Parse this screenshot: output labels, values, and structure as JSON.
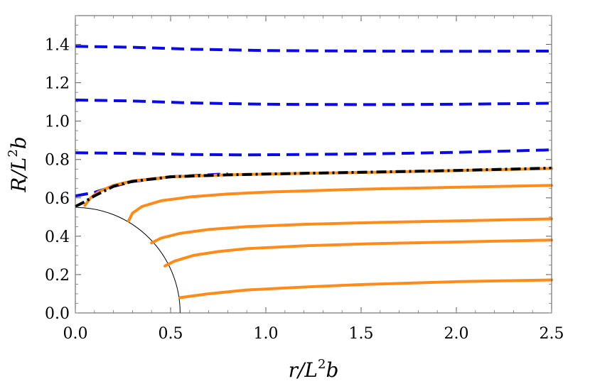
{
  "chart_data": {
    "type": "line",
    "xlabel": "r/L2b",
    "xlabel_parts": {
      "pre": "r/L",
      "sup": "2",
      "post": "b"
    },
    "ylabel": "R/L2b",
    "ylabel_parts": {
      "pre": "R/L",
      "sup": "2",
      "post": "b"
    },
    "xlim": [
      0,
      2.5
    ],
    "ylim": [
      0,
      1.55
    ],
    "x_ticks": [
      "0.0",
      "0.5",
      "1.0",
      "1.5",
      "2.0",
      "2.5"
    ],
    "x_tick_values": [
      0,
      0.5,
      1.0,
      1.5,
      2.0,
      2.5
    ],
    "y_ticks": [
      "0.0",
      "0.2",
      "0.4",
      "0.6",
      "0.8",
      "1.0",
      "1.2",
      "1.4"
    ],
    "y_tick_values": [
      0,
      0.2,
      0.4,
      0.6,
      0.8,
      1.0,
      1.2,
      1.4
    ],
    "grid": false,
    "colors": {
      "dashed": "#0a0ae6",
      "solid": "#ff8c1a",
      "critical": "#000000",
      "horizon": "#000000"
    },
    "horizon_radius": 0.55,
    "series": [
      {
        "style": "dashed",
        "x": [
          0,
          0.3,
          0.6,
          1.0,
          1.5,
          2.0,
          2.5
        ],
        "y": [
          1.39,
          1.385,
          1.375,
          1.368,
          1.365,
          1.364,
          1.365
        ]
      },
      {
        "style": "dashed",
        "x": [
          0,
          0.3,
          0.6,
          1.0,
          1.5,
          2.0,
          2.5
        ],
        "y": [
          1.11,
          1.105,
          1.095,
          1.088,
          1.086,
          1.088,
          1.093
        ]
      },
      {
        "style": "dashed",
        "x": [
          0,
          0.3,
          0.6,
          0.9,
          1.2,
          1.6,
          2.0,
          2.5
        ],
        "y": [
          0.835,
          0.832,
          0.826,
          0.824,
          0.826,
          0.83,
          0.837,
          0.85
        ]
      },
      {
        "style": "dashed",
        "x": [
          0,
          0.1,
          0.2,
          0.3,
          0.5,
          0.8
        ],
        "y": [
          0.61,
          0.628,
          0.66,
          0.685,
          0.71,
          0.725
        ]
      },
      {
        "style": "critical",
        "x": [
          0,
          0.05,
          0.1,
          0.2,
          0.3,
          0.5,
          0.8,
          1.2,
          1.6,
          2.0,
          2.5
        ],
        "y": [
          0.555,
          0.58,
          0.61,
          0.66,
          0.686,
          0.71,
          0.72,
          0.728,
          0.735,
          0.743,
          0.755
        ]
      },
      {
        "style": "solid",
        "x": [
          0.05,
          0.08,
          0.12,
          0.2,
          0.3,
          0.5,
          0.8,
          1.2,
          1.6,
          2.0,
          2.5
        ],
        "y": [
          0.56,
          0.6,
          0.63,
          0.665,
          0.688,
          0.71,
          0.72,
          0.728,
          0.734,
          0.742,
          0.753
        ]
      },
      {
        "style": "solid",
        "x": [
          0.28,
          0.3,
          0.35,
          0.45,
          0.6,
          0.8,
          1.0,
          1.5,
          2.0,
          2.5
        ],
        "y": [
          0.48,
          0.52,
          0.555,
          0.585,
          0.605,
          0.62,
          0.63,
          0.645,
          0.655,
          0.665
        ]
      },
      {
        "style": "solid",
        "x": [
          0.4,
          0.45,
          0.55,
          0.7,
          0.9,
          1.2,
          1.6,
          2.0,
          2.5
        ],
        "y": [
          0.365,
          0.39,
          0.415,
          0.435,
          0.45,
          0.462,
          0.472,
          0.48,
          0.49
        ]
      },
      {
        "style": "solid",
        "x": [
          0.47,
          0.52,
          0.62,
          0.75,
          0.9,
          1.2,
          1.6,
          2.0,
          2.5
        ],
        "y": [
          0.245,
          0.27,
          0.3,
          0.32,
          0.335,
          0.35,
          0.362,
          0.37,
          0.38
        ]
      },
      {
        "style": "solid",
        "x": [
          0.55,
          0.7,
          0.9,
          1.2,
          1.5,
          2.0,
          2.5
        ],
        "y": [
          0.08,
          0.1,
          0.12,
          0.135,
          0.148,
          0.163,
          0.172
        ]
      }
    ]
  }
}
